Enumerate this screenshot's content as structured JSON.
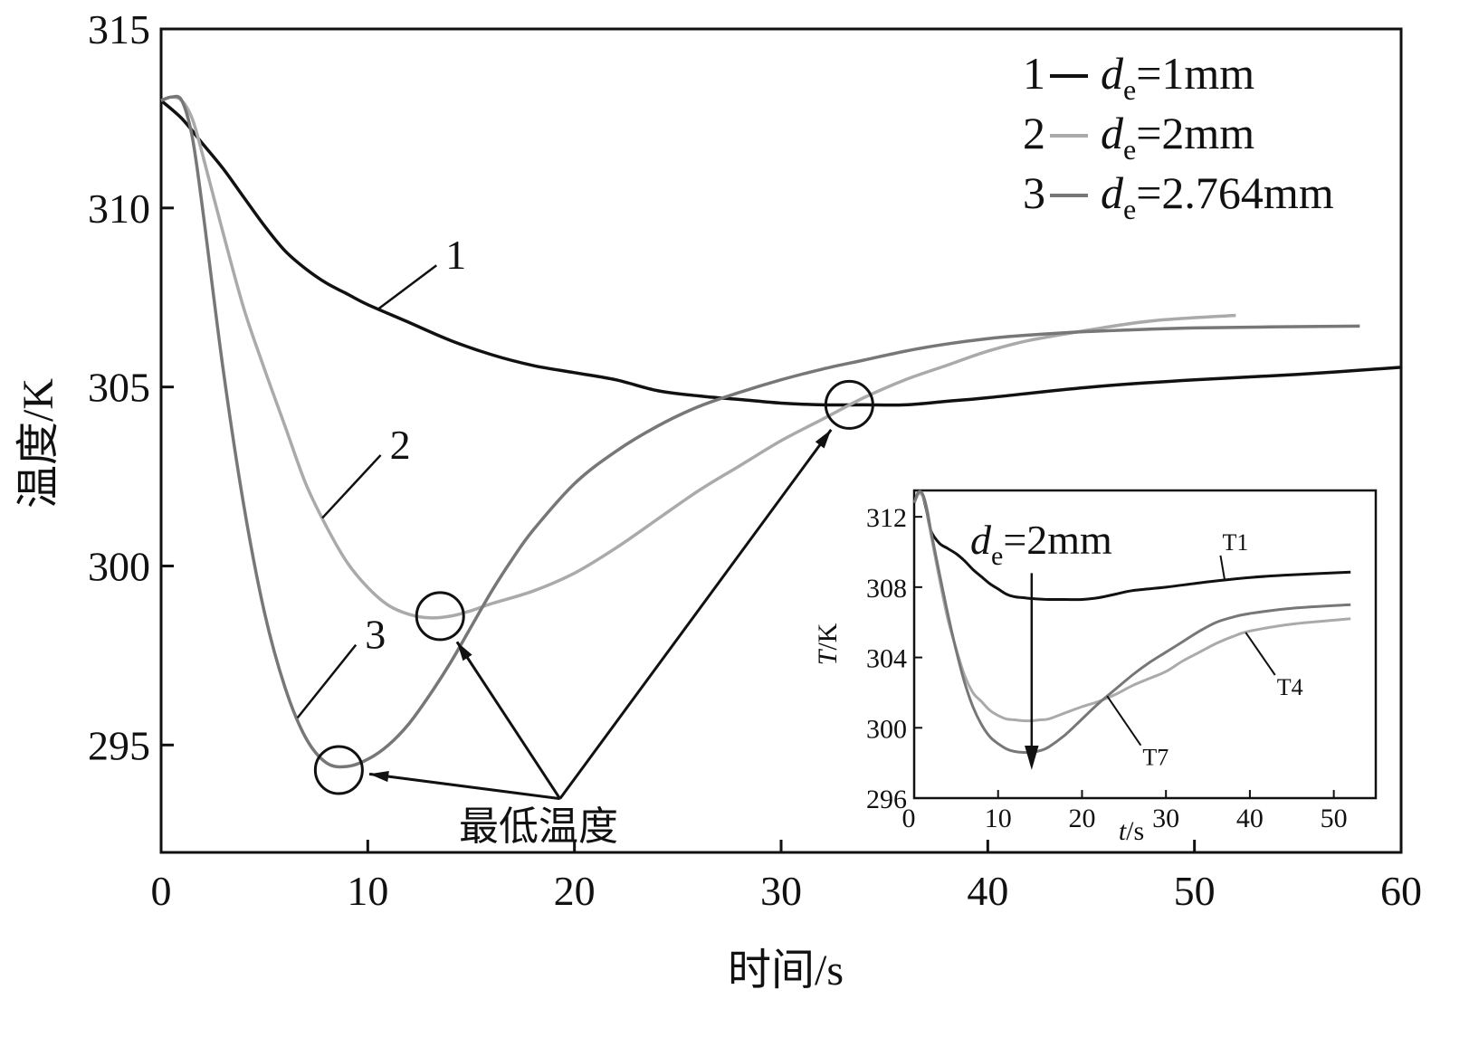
{
  "chart_data": [
    {
      "type": "line",
      "xlabel": "时间/s",
      "ylabel": "温度/K",
      "xlim": [
        0,
        60
      ],
      "ylim": [
        292,
        315
      ],
      "xticks": [
        "0",
        "10",
        "20",
        "30",
        "40",
        "50",
        "60"
      ],
      "yticks": [
        "295",
        "300",
        "305",
        "310",
        "315"
      ],
      "grid": false,
      "legend_position": "top-right",
      "series": [
        {
          "id": "1",
          "name": "1— de=1mm",
          "legend_num": "1",
          "legend_var": "d",
          "legend_sub": "e",
          "legend_value": "=1mm",
          "color": "#111111",
          "x": [
            0,
            1,
            2,
            3,
            4,
            5,
            6,
            7,
            8,
            9,
            10,
            12,
            14,
            16,
            18,
            20,
            22,
            24,
            26,
            28,
            30,
            32,
            34,
            36,
            38,
            40,
            45,
            50,
            55,
            60
          ],
          "y": [
            313.0,
            312.5,
            311.8,
            311.1,
            310.3,
            309.5,
            308.8,
            308.3,
            307.9,
            307.6,
            307.3,
            306.8,
            306.3,
            305.9,
            305.6,
            305.4,
            305.2,
            304.9,
            304.75,
            304.65,
            304.55,
            304.5,
            304.5,
            304.5,
            304.6,
            304.7,
            305.0,
            305.2,
            305.35,
            305.55
          ]
        },
        {
          "id": "2",
          "name": "2— de=2mm",
          "legend_num": "2",
          "legend_var": "d",
          "legend_sub": "e",
          "legend_value": "=2mm",
          "color": "#aaaaaa",
          "x": [
            0,
            0.5,
            1,
            1.5,
            2,
            3,
            4,
            5,
            6,
            7,
            8,
            9,
            10,
            11,
            12,
            13,
            14,
            15,
            16,
            18,
            20,
            22,
            24,
            26,
            28,
            30,
            32,
            34,
            36,
            38,
            40,
            42,
            45,
            48,
            52
          ],
          "y": [
            313.0,
            313.1,
            313.0,
            312.5,
            311.5,
            309.3,
            307.2,
            305.5,
            303.9,
            302.3,
            301.1,
            300.1,
            299.4,
            298.9,
            298.65,
            298.55,
            298.6,
            298.75,
            298.95,
            299.3,
            299.8,
            300.5,
            301.3,
            302.1,
            302.8,
            303.5,
            304.1,
            304.7,
            305.2,
            305.6,
            306.0,
            306.3,
            306.6,
            306.85,
            307.0
          ]
        },
        {
          "id": "3",
          "name": "3— de=2.764mm",
          "legend_num": "3",
          "legend_var": "d",
          "legend_sub": "e",
          "legend_value": "=2.764mm",
          "color": "#777777",
          "x": [
            0,
            0.5,
            1,
            1.5,
            2,
            3,
            4,
            5,
            6,
            7,
            8,
            9,
            10,
            11,
            12,
            13,
            14,
            15,
            16,
            17,
            18,
            20,
            22,
            24,
            26,
            28,
            30,
            32,
            34,
            36,
            38,
            40,
            42,
            45,
            50,
            58
          ],
          "y": [
            313.0,
            313.1,
            313.0,
            312.0,
            310.0,
            305.5,
            301.7,
            298.7,
            296.6,
            295.2,
            294.5,
            294.4,
            294.6,
            295.0,
            295.6,
            296.4,
            297.3,
            298.3,
            299.3,
            300.2,
            301.0,
            302.3,
            303.2,
            303.9,
            304.45,
            304.85,
            305.2,
            305.5,
            305.75,
            306.0,
            306.2,
            306.35,
            306.45,
            306.55,
            306.65,
            306.7
          ]
        }
      ],
      "curve_labels": [
        {
          "series": "1",
          "text": "1",
          "x": 13.5,
          "y": 308.6
        },
        {
          "series": "2",
          "text": "2",
          "x": 10.8,
          "y": 303.3
        },
        {
          "series": "3",
          "text": "3",
          "x": 9.6,
          "y": 298.0
        }
      ],
      "annotation": {
        "text": "最低温度",
        "origin": {
          "x": 19.3,
          "y": 293.5
        },
        "targets": [
          {
            "series": "3",
            "x": 8.6,
            "y": 294.3
          },
          {
            "series": "2",
            "x": 13.5,
            "y": 298.6
          },
          {
            "series": "1",
            "x": 33.3,
            "y": 304.5
          }
        ]
      }
    },
    {
      "type": "line",
      "note_var": "d",
      "note_sub": "e",
      "note_value": "=2mm",
      "xlabel_var": "t",
      "xlabel_unit": "/s",
      "ylabel_var": "T",
      "ylabel_unit": "/K",
      "xlim": [
        0,
        55
      ],
      "ylim": [
        296,
        313.5
      ],
      "xticks": [
        "0",
        "10",
        "20",
        "30",
        "40",
        "50"
      ],
      "yticks": [
        "296",
        "300",
        "304",
        "308",
        "312"
      ],
      "grid": false,
      "series": [
        {
          "id": "T1",
          "name": "T1",
          "color": "#111111",
          "x": [
            0,
            0.5,
            1,
            1.5,
            2,
            3,
            4,
            5,
            6,
            7,
            8,
            9,
            10,
            11,
            12,
            13,
            14,
            16,
            18,
            20,
            22,
            24,
            26,
            30,
            35,
            40,
            45,
            52
          ],
          "y": [
            312.8,
            313.3,
            313.2,
            312.3,
            311.2,
            310.5,
            310.2,
            309.9,
            309.5,
            309.0,
            308.6,
            308.2,
            307.9,
            307.6,
            307.45,
            307.4,
            307.35,
            307.3,
            307.3,
            307.3,
            307.4,
            307.6,
            307.8,
            308.0,
            308.3,
            308.55,
            308.7,
            308.85
          ]
        },
        {
          "id": "T4",
          "name": "T4",
          "color": "#aaaaaa",
          "x": [
            0,
            0.5,
            1,
            1.5,
            2,
            3,
            4,
            5,
            6,
            7,
            8,
            9,
            10,
            11,
            12,
            13,
            14,
            15,
            16,
            18,
            20,
            22,
            24,
            26,
            28,
            30,
            32,
            34,
            36,
            38,
            40,
            45,
            52
          ],
          "y": [
            312.8,
            313.3,
            313.2,
            312.4,
            311.0,
            308.5,
            306.2,
            304.5,
            303.0,
            302.0,
            301.5,
            301.0,
            300.7,
            300.5,
            300.45,
            300.4,
            300.4,
            300.45,
            300.5,
            300.85,
            301.2,
            301.5,
            301.9,
            302.4,
            302.8,
            303.2,
            303.8,
            304.3,
            304.8,
            305.2,
            305.5,
            305.9,
            306.2
          ]
        },
        {
          "id": "T7",
          "name": "T7",
          "color": "#777777",
          "x": [
            0,
            0.5,
            1,
            1.5,
            2,
            3,
            4,
            5,
            6,
            7,
            8,
            9,
            10,
            11,
            12,
            13,
            14,
            15,
            16,
            18,
            20,
            22,
            24,
            26,
            28,
            30,
            32,
            34,
            36,
            38,
            40,
            45,
            52
          ],
          "y": [
            312.8,
            313.4,
            313.3,
            312.5,
            311.2,
            308.8,
            306.5,
            304.4,
            302.6,
            301.2,
            300.2,
            299.5,
            299.1,
            298.8,
            298.65,
            298.6,
            298.6,
            298.7,
            298.9,
            299.6,
            300.5,
            301.4,
            302.2,
            303.0,
            303.7,
            304.3,
            304.9,
            305.5,
            306.0,
            306.3,
            306.5,
            306.8,
            307.0
          ]
        }
      ],
      "curve_labels": [
        {
          "series": "T1",
          "text": "T1",
          "x": 36.5,
          "y": 309.8
        },
        {
          "series": "T4",
          "text": "T4",
          "x": 43.0,
          "y": 303.0
        },
        {
          "series": "T7",
          "text": "T7",
          "x": 27.0,
          "y": 299.0
        }
      ],
      "arrow": {
        "x": 14.0,
        "from_y": 308.8,
        "to_y": 297.6
      }
    }
  ]
}
